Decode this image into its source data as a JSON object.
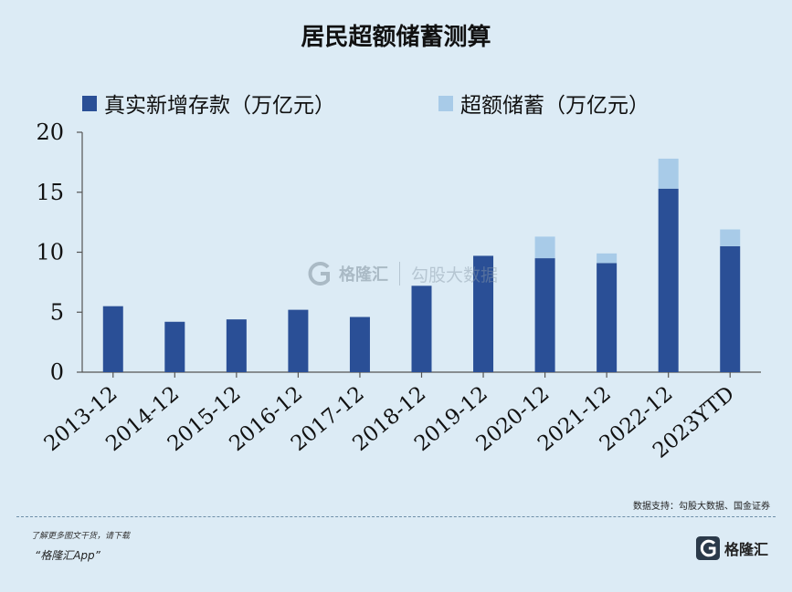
{
  "title": "居民超额储蓄测算",
  "source": "数据支持：勾股大数据、国金证券",
  "promo": {
    "line1": "了解更多图文干货，请下载",
    "line2": "“格隆汇App”"
  },
  "brand": {
    "name": "格隆汇",
    "icon": "g-logo-icon"
  },
  "watermark": {
    "name": "格隆汇",
    "sub": "勾股大数据"
  },
  "colors": {
    "deposit": "#2a4f96",
    "excess": "#a8cbe8",
    "background": "#dcebf5"
  },
  "chart_data": {
    "type": "bar",
    "stacked": true,
    "categories": [
      "2013-12",
      "2014-12",
      "2015-12",
      "2016-12",
      "2017-12",
      "2018-12",
      "2019-12",
      "2020-12",
      "2021-12",
      "2022-12",
      "2023YTD"
    ],
    "series": [
      {
        "name": "真实新增存款（万亿元）",
        "values": [
          5.5,
          4.2,
          4.4,
          5.2,
          4.6,
          7.2,
          9.7,
          9.5,
          9.1,
          15.3,
          10.5
        ]
      },
      {
        "name": "超额储蓄（万亿元）",
        "values": [
          0,
          0,
          0,
          0,
          0,
          0,
          0,
          1.8,
          0.8,
          2.5,
          1.4
        ]
      }
    ],
    "yticks": [
      "0",
      "5",
      "10",
      "15",
      "20"
    ],
    "ylim": [
      0,
      20
    ],
    "legend_position": "top",
    "grid": false
  }
}
